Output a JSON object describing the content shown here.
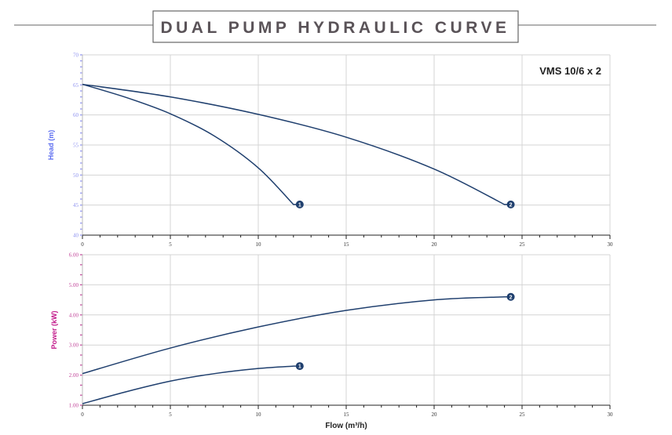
{
  "colors": {
    "curve": "#1f3f6e",
    "head_axis": "#5b6cf0",
    "head_ticks": "#8f93f0",
    "power_axis": "#c2188a",
    "power_ticks": "#c2459a",
    "grid": "#d4d4d4",
    "title": "#5a5358"
  },
  "chart_data": [
    {
      "type": "line",
      "title": "DUAL PUMP HYDRAULIC CURVE",
      "legend_text": "VMS 10/6 x 2",
      "legend_placement": "top-right",
      "xlabel": "",
      "ylabel": "Head (m)",
      "xlim": [
        0,
        30
      ],
      "ylim": [
        40,
        70
      ],
      "xticks": [
        "0",
        "5",
        "10",
        "15",
        "20",
        "25",
        "30"
      ],
      "yticks": [
        "40",
        "45",
        "50",
        "55",
        "60",
        "65",
        "70"
      ],
      "grid": true,
      "series": [
        {
          "name": "1",
          "x": [
            0,
            2.5,
            5,
            7.5,
            10,
            12
          ],
          "y": [
            65.1,
            62.9,
            60.2,
            56.5,
            51.2,
            45.1
          ]
        },
        {
          "name": "2",
          "x": [
            0,
            5,
            10,
            15,
            20,
            24
          ],
          "y": [
            65.1,
            63.0,
            60.1,
            56.3,
            51.0,
            45.1
          ]
        }
      ]
    },
    {
      "type": "line",
      "xlabel": "Flow (m³/h)",
      "ylabel": "Power (kW)",
      "xlim": [
        0,
        30
      ],
      "ylim": [
        1,
        6
      ],
      "xticks": [
        "0",
        "5",
        "10",
        "15",
        "20",
        "25",
        "30"
      ],
      "yticks": [
        "1.00",
        "2.00",
        "3.00",
        "4.00",
        "5.00",
        "6.00"
      ],
      "grid": true,
      "series": [
        {
          "name": "1",
          "x": [
            0,
            2.5,
            5,
            7.5,
            10,
            12
          ],
          "y": [
            1.05,
            1.45,
            1.8,
            2.05,
            2.22,
            2.3
          ]
        },
        {
          "name": "2",
          "x": [
            0,
            5,
            10,
            15,
            20,
            24
          ],
          "y": [
            2.05,
            2.9,
            3.6,
            4.15,
            4.5,
            4.6
          ]
        }
      ]
    }
  ]
}
